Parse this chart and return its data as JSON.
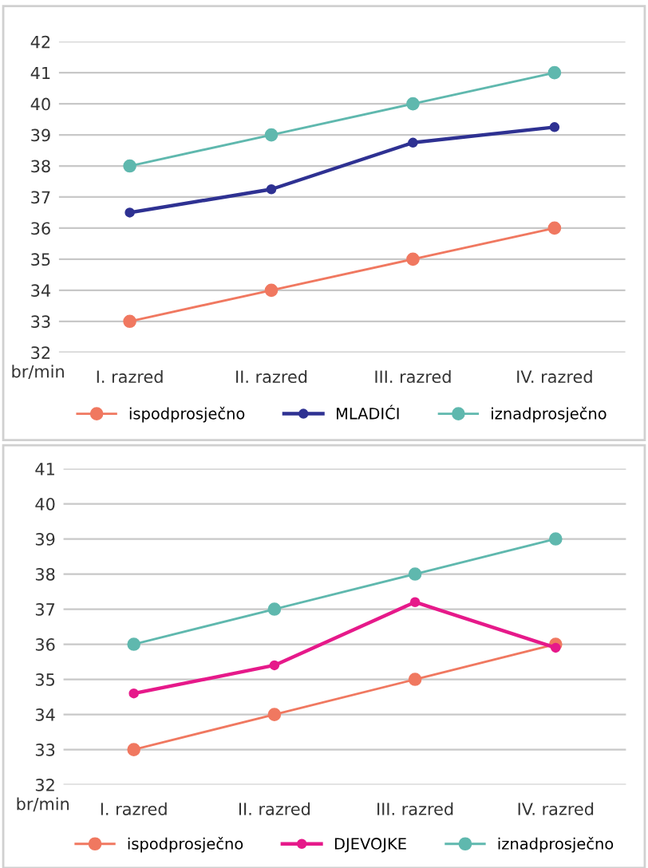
{
  "chart_data": [
    {
      "type": "line",
      "ylabel": "br/min",
      "categories": [
        "I. razred",
        "II. razred",
        "III. razred",
        "IV. razred"
      ],
      "ylim": [
        32,
        42
      ],
      "yticks": [
        32,
        33,
        34,
        35,
        36,
        37,
        38,
        39,
        40,
        41,
        42
      ],
      "grid": "y",
      "legend": "bottom",
      "marker": "circle",
      "line_style": "solid",
      "series": [
        {
          "name": "ispodprosječno",
          "color": "#f07860",
          "values": [
            33,
            34,
            35,
            36
          ]
        },
        {
          "name": "MLADIĆI",
          "color": "#2e3192",
          "values": [
            36.5,
            37.25,
            38.75,
            39.25
          ]
        },
        {
          "name": "iznadprosječno",
          "color": "#5fb8ae",
          "values": [
            38,
            39,
            40,
            41
          ]
        }
      ]
    },
    {
      "type": "line",
      "ylabel": "br/min",
      "categories": [
        "I. razred",
        "II. razred",
        "III. razred",
        "IV. razred"
      ],
      "ylim": [
        32,
        41
      ],
      "yticks": [
        32,
        33,
        34,
        35,
        36,
        37,
        38,
        39,
        40,
        41
      ],
      "grid": "y",
      "legend": "bottom",
      "marker": "circle",
      "line_style": "solid",
      "series": [
        {
          "name": "ispodprosječno",
          "color": "#f07860",
          "values": [
            33,
            34,
            35,
            36
          ]
        },
        {
          "name": "DJEVOJKE",
          "color": "#e6198a",
          "values": [
            34.6,
            35.4,
            37.2,
            35.9
          ]
        },
        {
          "name": "iznadprosječno",
          "color": "#5fb8ae",
          "values": [
            36,
            37,
            38,
            39
          ]
        }
      ]
    }
  ]
}
